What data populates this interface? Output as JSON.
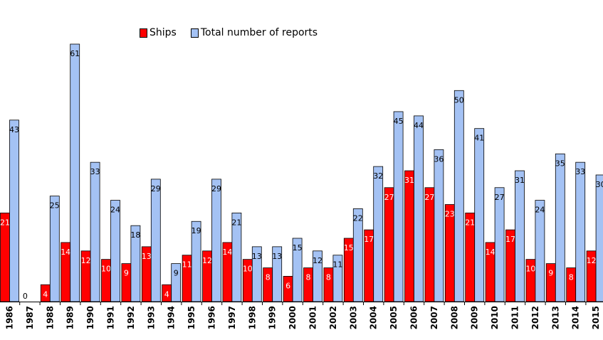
{
  "chart_data": {
    "type": "bar",
    "title": "",
    "xlabel": "",
    "ylabel": "",
    "categories": [
      "1986",
      "1987",
      "1988",
      "1989",
      "1990",
      "1991",
      "1992",
      "1993",
      "1994",
      "1995",
      "1996",
      "1997",
      "1998",
      "1999",
      "2000",
      "2001",
      "2002",
      "2003",
      "2004",
      "2005",
      "2006",
      "2007",
      "2008",
      "2009",
      "2010",
      "2011",
      "2012",
      "2013",
      "2014",
      "2015"
    ],
    "series": [
      {
        "name": "Ships",
        "color": "#ff0000",
        "values": [
          21,
          0,
          4,
          14,
          12,
          10,
          9,
          13,
          4,
          11,
          12,
          14,
          10,
          8,
          6,
          8,
          8,
          15,
          17,
          27,
          31,
          27,
          23,
          21,
          14,
          17,
          10,
          9,
          8,
          12
        ]
      },
      {
        "name": "Total number of reports",
        "color": "#a4c2f4",
        "values": [
          43,
          null,
          25,
          61,
          33,
          24,
          18,
          29,
          9,
          19,
          29,
          21,
          13,
          13,
          15,
          12,
          11,
          22,
          32,
          45,
          44,
          36,
          50,
          41,
          27,
          31,
          24,
          35,
          33,
          30
        ]
      }
    ],
    "ylim": [
      0,
      61
    ],
    "grid": false,
    "legend_position": "top-left"
  }
}
